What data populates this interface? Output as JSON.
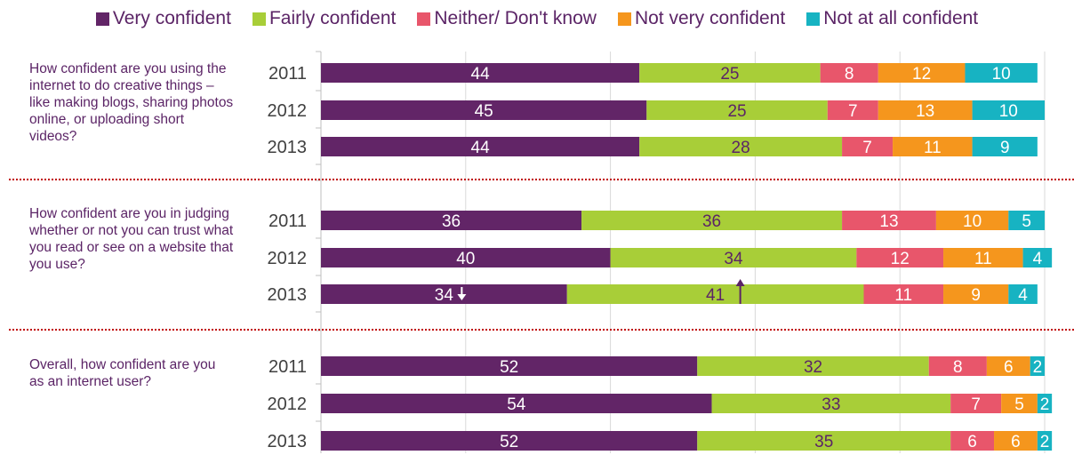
{
  "chart_data": {
    "type": "bar",
    "stacked": true,
    "orientation": "horizontal",
    "percent_scale": [
      0,
      100
    ],
    "grid": true,
    "legend": "top",
    "colors": [
      "#622567",
      "#a8ce38",
      "#e8566b",
      "#f5961d",
      "#17b3c2"
    ],
    "series_names": [
      "Very confident",
      "Fairly confident",
      "Neither/ Don't know",
      "Not very confident",
      "Not at all confident"
    ],
    "groups": [
      {
        "question": "How confident are you using the internet to do creative things – like making blogs, sharing photos online, or uploading short videos?",
        "rows": [
          {
            "year": "2011",
            "values": [
              44,
              25,
              8,
              12,
              10
            ]
          },
          {
            "year": "2012",
            "values": [
              45,
              25,
              7,
              13,
              10
            ]
          },
          {
            "year": "2013",
            "values": [
              44,
              28,
              7,
              11,
              9
            ]
          }
        ]
      },
      {
        "question": "How confident are you in judging whether or not you can trust what you read or see on a website that you use?",
        "rows": [
          {
            "year": "2011",
            "values": [
              36,
              36,
              13,
              10,
              5
            ]
          },
          {
            "year": "2012",
            "values": [
              40,
              34,
              12,
              11,
              4
            ]
          },
          {
            "year": "2013",
            "values": [
              34,
              41,
              11,
              9,
              4
            ],
            "arrows": {
              "0": "down",
              "1": "up"
            }
          }
        ]
      },
      {
        "question": "Overall, how confident are you as an internet user?",
        "rows": [
          {
            "year": "2011",
            "values": [
              52,
              32,
              8,
              6,
              2
            ]
          },
          {
            "year": "2012",
            "values": [
              54,
              33,
              7,
              5,
              2
            ]
          },
          {
            "year": "2013",
            "values": [
              52,
              35,
              6,
              6,
              2
            ]
          }
        ]
      }
    ]
  }
}
